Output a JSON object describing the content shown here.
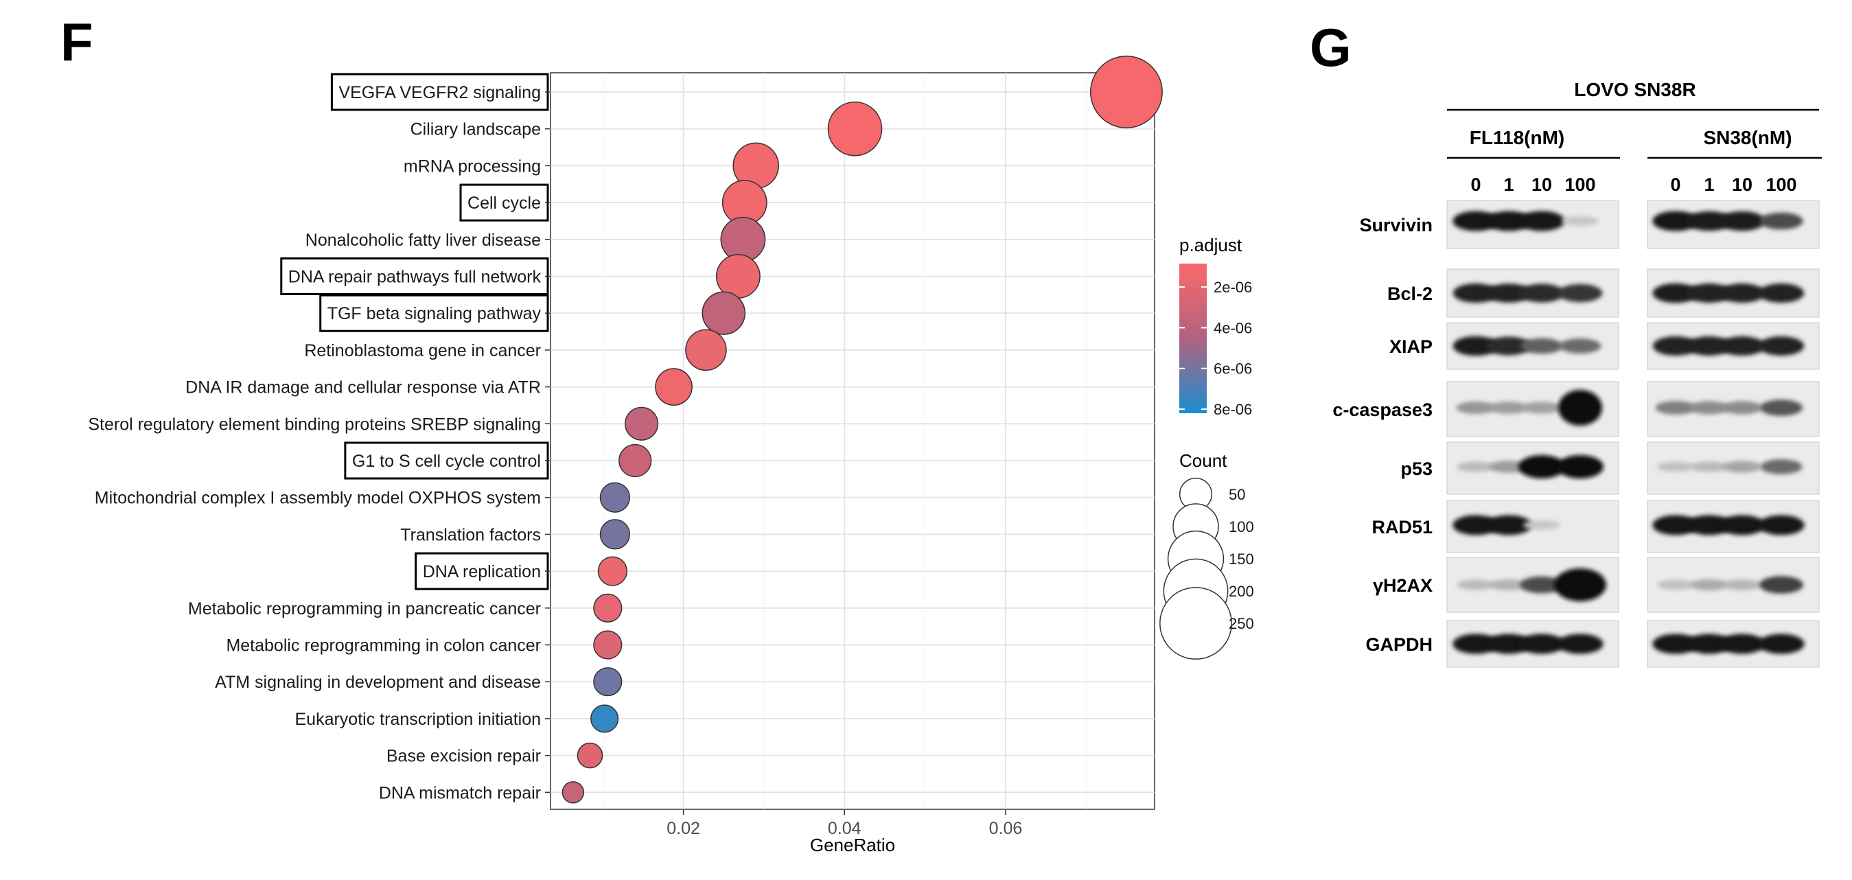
{
  "panel_f_letter": "F",
  "panel_g_letter": "G",
  "chart_data": {
    "type": "scatter",
    "title": "",
    "xlabel": "GeneRatio",
    "ylabel": "",
    "xlim": [
      0.0035,
      0.0785
    ],
    "xticks": [
      0.02,
      0.04,
      0.06
    ],
    "xtick_labels": [
      "0.02",
      "0.04",
      "0.06"
    ],
    "grid": true,
    "terms": [
      {
        "name": "VEGFA VEGFR2 signaling",
        "gene_ratio": 0.075,
        "count": 250,
        "p_adjust": 1e-06,
        "boxed": true
      },
      {
        "name": "Ciliary landscape",
        "gene_ratio": 0.0413,
        "count": 140,
        "p_adjust": 1e-06,
        "boxed": false
      },
      {
        "name": "mRNA processing",
        "gene_ratio": 0.029,
        "count": 100,
        "p_adjust": 1.2e-06,
        "boxed": false
      },
      {
        "name": "Cell cycle",
        "gene_ratio": 0.0276,
        "count": 95,
        "p_adjust": 1.2e-06,
        "boxed": true
      },
      {
        "name": "Nonalcoholic fatty liver disease",
        "gene_ratio": 0.0274,
        "count": 95,
        "p_adjust": 3.6e-06,
        "boxed": false
      },
      {
        "name": "DNA repair pathways full network",
        "gene_ratio": 0.0268,
        "count": 92,
        "p_adjust": 1.5e-06,
        "boxed": true
      },
      {
        "name": "TGF beta signaling pathway",
        "gene_ratio": 0.025,
        "count": 88,
        "p_adjust": 3.8e-06,
        "boxed": true
      },
      {
        "name": "Retinoblastoma gene in cancer",
        "gene_ratio": 0.0228,
        "count": 80,
        "p_adjust": 1.6e-06,
        "boxed": false
      },
      {
        "name": "DNA IR damage and cellular response via ATR",
        "gene_ratio": 0.0188,
        "count": 65,
        "p_adjust": 1.4e-06,
        "boxed": false
      },
      {
        "name": "Sterol regulatory element binding proteins SREBP signaling",
        "gene_ratio": 0.0148,
        "count": 52,
        "p_adjust": 3.7e-06,
        "boxed": false
      },
      {
        "name": "G1 to S cell cycle control",
        "gene_ratio": 0.014,
        "count": 50,
        "p_adjust": 3.3e-06,
        "boxed": true
      },
      {
        "name": "Mitochondrial complex I assembly model OXPHOS system",
        "gene_ratio": 0.0115,
        "count": 42,
        "p_adjust": 6e-06,
        "boxed": false
      },
      {
        "name": "Translation factors",
        "gene_ratio": 0.0115,
        "count": 42,
        "p_adjust": 6e-06,
        "boxed": false
      },
      {
        "name": "DNA replication",
        "gene_ratio": 0.0112,
        "count": 40,
        "p_adjust": 1.5e-06,
        "boxed": true
      },
      {
        "name": "Metabolic reprogramming in pancreatic cancer",
        "gene_ratio": 0.0106,
        "count": 38,
        "p_adjust": 1.9e-06,
        "boxed": false
      },
      {
        "name": "Metabolic reprogramming in colon cancer",
        "gene_ratio": 0.0106,
        "count": 38,
        "p_adjust": 2.3e-06,
        "boxed": false
      },
      {
        "name": "ATM signaling in development and disease",
        "gene_ratio": 0.0106,
        "count": 38,
        "p_adjust": 6.2e-06,
        "boxed": false
      },
      {
        "name": "Eukaryotic transcription initiation",
        "gene_ratio": 0.0102,
        "count": 36,
        "p_adjust": 7.6e-06,
        "boxed": false
      },
      {
        "name": "Base excision repair",
        "gene_ratio": 0.0084,
        "count": 30,
        "p_adjust": 2.2e-06,
        "boxed": false
      },
      {
        "name": "DNA mismatch repair",
        "gene_ratio": 0.0063,
        "count": 22,
        "p_adjust": 3.4e-06,
        "boxed": false
      }
    ],
    "color_legend": {
      "title": "p.adjust",
      "min": 8.5e-07,
      "max": 8.2e-06,
      "low_color": "#f8696b",
      "mid_color": "#b2627f",
      "high_color": "#1a8ed0",
      "ticks": [
        2e-06,
        4e-06,
        6e-06,
        8e-06
      ],
      "tick_labels": [
        "2e-06",
        "4e-06",
        "6e-06",
        "8e-06"
      ]
    },
    "size_legend": {
      "title": "Count",
      "entries": [
        50,
        100,
        150,
        200,
        250
      ],
      "entry_labels": [
        "50",
        "100",
        "150",
        "200",
        "250"
      ]
    }
  },
  "blot": {
    "title": "LOVO SN38R",
    "groups": [
      {
        "label": "FL118(nM)",
        "doses": [
          "0",
          "1",
          "10",
          "100"
        ]
      },
      {
        "label": "SN38(nM)",
        "doses": [
          "0",
          "1",
          "10",
          "100"
        ]
      }
    ],
    "proteins": [
      "Survivin",
      "Bcl-2",
      "XIAP",
      "c-caspase3",
      "p53",
      "RAD51",
      "γH2AX",
      "GAPDH"
    ],
    "band_intensity": {
      "Survivin": [
        [
          0.95,
          0.95,
          0.95,
          0.12
        ],
        [
          0.95,
          0.92,
          0.92,
          0.7
        ]
      ],
      "Bcl-2": [
        [
          0.9,
          0.88,
          0.85,
          0.8
        ],
        [
          0.92,
          0.9,
          0.9,
          0.9
        ]
      ],
      "XIAP": [
        [
          0.92,
          0.85,
          0.6,
          0.55
        ],
        [
          0.9,
          0.9,
          0.9,
          0.9
        ]
      ],
      "c-caspase3": [
        [
          0.35,
          0.32,
          0.3,
          1.0
        ],
        [
          0.45,
          0.4,
          0.4,
          0.65
        ]
      ],
      "p53": [
        [
          0.18,
          0.32,
          1.0,
          1.0
        ],
        [
          0.15,
          0.18,
          0.28,
          0.55
        ]
      ],
      "RAD51": [
        [
          0.95,
          0.95,
          0.12,
          0.0
        ],
        [
          0.95,
          0.95,
          0.95,
          0.95
        ]
      ],
      "γH2AX": [
        [
          0.18,
          0.22,
          0.7,
          1.0
        ],
        [
          0.15,
          0.25,
          0.2,
          0.75
        ]
      ],
      "GAPDH": [
        [
          0.95,
          0.95,
          0.95,
          0.95
        ],
        [
          0.95,
          0.95,
          0.95,
          0.95
        ]
      ]
    }
  }
}
